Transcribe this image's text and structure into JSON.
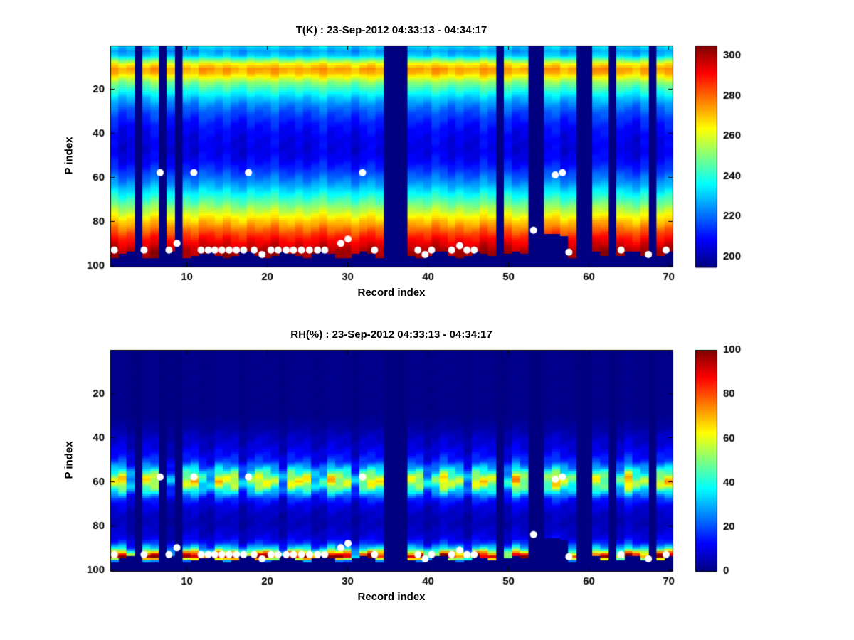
{
  "figure": {
    "background": "#ffffff",
    "nan_color": "#000080",
    "marker_color": "#ffffff"
  },
  "chart_data": [
    {
      "type": "heatmap",
      "title": "T(K) : 23-Sep-2012 04:33:13 - 04:34:17",
      "xlabel": "Record index",
      "ylabel": "P index",
      "colormap": "jet",
      "x_range": [
        1,
        70
      ],
      "y_range": [
        1,
        100
      ],
      "y_axis_reversed": true,
      "clim": [
        195,
        305
      ],
      "x_ticks": [
        10,
        20,
        30,
        40,
        50,
        60,
        70
      ],
      "y_ticks": [
        20,
        40,
        60,
        80,
        100
      ],
      "colorbar_ticks": [
        200,
        220,
        240,
        260,
        280,
        300
      ],
      "missing_records": [
        4,
        7,
        9,
        35,
        36,
        37,
        49,
        53,
        54,
        59,
        60,
        63,
        68
      ],
      "surface": {
        "base": 95,
        "wobble": 1.4,
        "freq": 1.31,
        "overrides": {
          "55": 85,
          "56": 85,
          "57": 86
        }
      },
      "profile_p_value": [
        [
          1,
          231
        ],
        [
          3,
          226
        ],
        [
          5,
          230
        ],
        [
          7,
          248
        ],
        [
          9,
          265
        ],
        [
          11,
          274
        ],
        [
          13,
          271
        ],
        [
          15,
          262
        ],
        [
          17,
          252
        ],
        [
          19,
          246
        ],
        [
          21,
          240
        ],
        [
          24,
          231
        ],
        [
          27,
          224
        ],
        [
          31,
          217
        ],
        [
          36,
          211
        ],
        [
          42,
          207
        ],
        [
          48,
          206
        ],
        [
          52,
          208
        ],
        [
          56,
          213
        ],
        [
          60,
          220
        ],
        [
          64,
          228
        ],
        [
          68,
          238
        ],
        [
          72,
          248
        ],
        [
          76,
          259
        ],
        [
          80,
          270
        ],
        [
          84,
          280
        ],
        [
          87,
          288
        ],
        [
          90,
          294
        ],
        [
          92,
          298
        ],
        [
          94,
          301
        ],
        [
          100,
          302
        ]
      ],
      "noise": {
        "add": 2.5,
        "addj": 1.0,
        "mul": 0,
        "mulj": 0,
        "f1": 2.17,
        "f2": 0.91
      }
    },
    {
      "type": "heatmap",
      "title": "RH(%) : 23-Sep-2012 04:33:13 - 04:34:17",
      "xlabel": "Record index",
      "ylabel": "P index",
      "colormap": "jet",
      "x_range": [
        1,
        70
      ],
      "y_range": [
        1,
        100
      ],
      "y_axis_reversed": true,
      "clim": [
        0,
        100
      ],
      "x_ticks": [
        10,
        20,
        30,
        40,
        50,
        60,
        70
      ],
      "y_ticks": [
        20,
        40,
        60,
        80,
        100
      ],
      "colorbar_ticks": [
        0,
        20,
        40,
        60,
        80,
        100
      ],
      "missing_records": [
        4,
        7,
        9,
        35,
        36,
        37,
        49,
        53,
        54,
        59,
        60,
        63,
        68
      ],
      "surface": {
        "base": 95,
        "wobble": 1.4,
        "freq": 1.31,
        "overrides": {
          "55": 85,
          "56": 85,
          "57": 86
        }
      },
      "profile_p_value": [
        [
          1,
          1
        ],
        [
          30,
          1
        ],
        [
          36,
          3
        ],
        [
          40,
          6
        ],
        [
          44,
          8
        ],
        [
          48,
          12
        ],
        [
          51,
          16
        ],
        [
          54,
          28
        ],
        [
          56,
          38
        ],
        [
          58,
          48
        ],
        [
          60,
          52
        ],
        [
          62,
          46
        ],
        [
          64,
          36
        ],
        [
          66,
          24
        ],
        [
          68,
          15
        ],
        [
          71,
          9
        ],
        [
          75,
          6
        ],
        [
          79,
          5
        ],
        [
          83,
          7
        ],
        [
          86,
          10
        ],
        [
          88,
          16
        ],
        [
          90,
          30
        ],
        [
          91,
          42
        ],
        [
          92,
          58
        ],
        [
          93,
          72
        ],
        [
          94,
          83
        ],
        [
          95,
          55
        ],
        [
          96,
          22
        ],
        [
          100,
          2
        ]
      ],
      "noise": {
        "add": 0,
        "addj": 0,
        "mul": 0.3,
        "mulj": 0.15,
        "f1": 1.37,
        "f2": 2.71
      }
    }
  ],
  "markers": {
    "color": "#ffffff",
    "radius": 5,
    "points": [
      [
        1,
        93
      ],
      [
        4.7,
        93
      ],
      [
        6.7,
        58
      ],
      [
        7.8,
        93
      ],
      [
        8.8,
        90
      ],
      [
        10.9,
        58
      ],
      [
        11.8,
        93
      ],
      [
        12.7,
        93
      ],
      [
        13.5,
        93
      ],
      [
        14.4,
        93
      ],
      [
        15.3,
        93
      ],
      [
        16.2,
        93
      ],
      [
        17.1,
        93
      ],
      [
        17.7,
        58
      ],
      [
        18.4,
        93
      ],
      [
        19.4,
        95
      ],
      [
        20.5,
        93
      ],
      [
        21.4,
        93
      ],
      [
        22.4,
        93
      ],
      [
        23.3,
        93
      ],
      [
        24.3,
        93
      ],
      [
        25.3,
        93
      ],
      [
        26.3,
        93
      ],
      [
        27.2,
        93
      ],
      [
        29.2,
        90
      ],
      [
        30.1,
        88
      ],
      [
        31.9,
        58
      ],
      [
        33.4,
        93
      ],
      [
        38.8,
        93
      ],
      [
        39.7,
        95
      ],
      [
        40.5,
        93
      ],
      [
        43,
        93
      ],
      [
        44,
        91
      ],
      [
        44.9,
        93
      ],
      [
        45.8,
        93
      ],
      [
        53.2,
        84
      ],
      [
        55.9,
        59
      ],
      [
        56.8,
        58
      ],
      [
        57.6,
        94
      ],
      [
        64.1,
        93
      ],
      [
        67.5,
        95
      ],
      [
        69.7,
        93
      ]
    ]
  }
}
